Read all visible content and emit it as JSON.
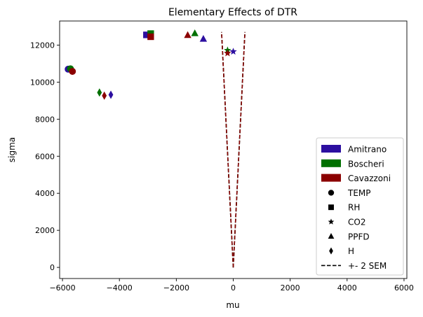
{
  "chart_data": {
    "type": "scatter",
    "title": "Elementary Effects of DTR",
    "xlabel": "mu",
    "ylabel": "sigma",
    "xlim": [
      -6100,
      6100
    ],
    "ylim": [
      -600,
      13300
    ],
    "xticks": [
      -6000,
      -4000,
      -2000,
      0,
      2000,
      4000,
      6000
    ],
    "xtick_labels": [
      "−6000",
      "−4000",
      "−2000",
      "0",
      "2000",
      "4000",
      "6000"
    ],
    "yticks": [
      0,
      2000,
      4000,
      6000,
      8000,
      10000,
      12000
    ],
    "ytick_labels": [
      "0",
      "2000",
      "4000",
      "6000",
      "8000",
      "10000",
      "12000"
    ],
    "grid": false,
    "legend_placement": "bottom-right",
    "models": [
      {
        "name": "Amitrano",
        "color": "#2c0fa0"
      },
      {
        "name": "Boscheri",
        "color": "#007000"
      },
      {
        "name": "Cavazzoni",
        "color": "#8b0000"
      }
    ],
    "variables": [
      {
        "name": "TEMP",
        "marker": "circle"
      },
      {
        "name": "RH",
        "marker": "square"
      },
      {
        "name": "CO2",
        "marker": "star"
      },
      {
        "name": "PPFD",
        "marker": "triangle"
      },
      {
        "name": "H",
        "marker": "diamond"
      }
    ],
    "points": [
      {
        "model": "Amitrano",
        "variable": "TEMP",
        "mu": -5800,
        "sigma": 10700
      },
      {
        "model": "Boscheri",
        "variable": "TEMP",
        "mu": -5720,
        "sigma": 10720
      },
      {
        "model": "Cavazzoni",
        "variable": "TEMP",
        "mu": -5650,
        "sigma": 10580
      },
      {
        "model": "Amitrano",
        "variable": "RH",
        "mu": -3050,
        "sigma": 12550
      },
      {
        "model": "Boscheri",
        "variable": "RH",
        "mu": -2900,
        "sigma": 12620
      },
      {
        "model": "Cavazzoni",
        "variable": "RH",
        "mu": -2900,
        "sigma": 12450
      },
      {
        "model": "Amitrano",
        "variable": "CO2",
        "mu": 0,
        "sigma": 11650
      },
      {
        "model": "Boscheri",
        "variable": "CO2",
        "mu": -200,
        "sigma": 11720
      },
      {
        "model": "Cavazzoni",
        "variable": "CO2",
        "mu": -200,
        "sigma": 11560
      },
      {
        "model": "Amitrano",
        "variable": "PPFD",
        "mu": -1050,
        "sigma": 12330
      },
      {
        "model": "Boscheri",
        "variable": "PPFD",
        "mu": -1350,
        "sigma": 12630
      },
      {
        "model": "Cavazzoni",
        "variable": "PPFD",
        "mu": -1600,
        "sigma": 12530
      },
      {
        "model": "Amitrano",
        "variable": "H",
        "mu": -4300,
        "sigma": 9320
      },
      {
        "model": "Boscheri",
        "variable": "H",
        "mu": -4700,
        "sigma": 9440
      },
      {
        "model": "Cavazzoni",
        "variable": "H",
        "mu": -4530,
        "sigma": 9270
      }
    ],
    "sem_lines": {
      "label": "+- 2 SEM",
      "style": "dashed",
      "colors": [
        "#2c0fa0",
        "#007000",
        "#8b0000"
      ],
      "left": [
        [
          0,
          0
        ],
        [
          -410,
          12700
        ]
      ],
      "right": [
        [
          0,
          0
        ],
        [
          410,
          12700
        ]
      ]
    },
    "legend_entries": [
      "Amitrano",
      "Boscheri",
      "Cavazzoni",
      "TEMP",
      "RH",
      "CO2",
      "PPFD",
      "H",
      "+- 2 SEM"
    ]
  }
}
